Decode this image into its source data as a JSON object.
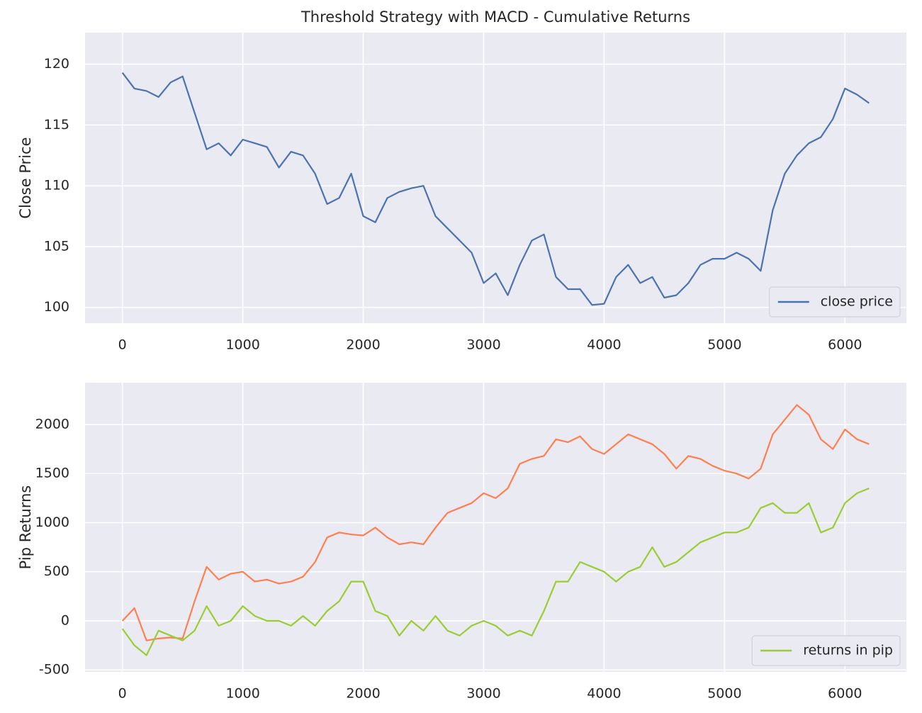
{
  "chart_data": [
    {
      "type": "line",
      "title": "Threshold Strategy with MACD - Cumulative Returns",
      "y_label": "Close Price",
      "x": [
        0,
        100,
        200,
        300,
        400,
        500,
        600,
        700,
        800,
        900,
        1000,
        1100,
        1200,
        1300,
        1400,
        1500,
        1600,
        1700,
        1800,
        1900,
        2000,
        2100,
        2200,
        2300,
        2400,
        2500,
        2600,
        2700,
        2800,
        2900,
        3000,
        3100,
        3200,
        3300,
        3400,
        3500,
        3600,
        3700,
        3800,
        3900,
        4000,
        4100,
        4200,
        4300,
        4400,
        4500,
        4600,
        4700,
        4800,
        4900,
        5000,
        5100,
        5200,
        5300,
        5400,
        5500,
        5600,
        5700,
        5800,
        5900,
        6000,
        6100,
        6200
      ],
      "series": [
        {
          "name": "close price",
          "color": "#4c72b0",
          "values": [
            119.3,
            118,
            117.8,
            117.3,
            118.5,
            119,
            116,
            113,
            113.5,
            112.5,
            113.8,
            113.5,
            113.2,
            111.5,
            112.8,
            112.5,
            111,
            108.5,
            109,
            111,
            107.5,
            107,
            109,
            109.5,
            109.8,
            110,
            107.5,
            106.5,
            105.5,
            104.5,
            102,
            102.8,
            101,
            103.5,
            105.5,
            106,
            102.5,
            101.5,
            101.5,
            100.2,
            100.3,
            102.5,
            103.5,
            102,
            102.5,
            100.8,
            101,
            102,
            103.5,
            104,
            104,
            104.5,
            104,
            103,
            108,
            111,
            112.5,
            113.5,
            114,
            115.5,
            118,
            117.5,
            116.8
          ]
        }
      ],
      "xlim": [
        -310,
        6510
      ],
      "xticks": [
        0,
        1000,
        2000,
        3000,
        4000,
        5000,
        6000
      ],
      "ylim": [
        98.7,
        122.6
      ],
      "yticks": [
        100,
        105,
        110,
        115,
        120
      ],
      "grid": true,
      "legend": "lower right"
    },
    {
      "type": "line",
      "y_label": "Pip Returns",
      "x": [
        0,
        100,
        200,
        300,
        400,
        500,
        600,
        700,
        800,
        900,
        1000,
        1100,
        1200,
        1300,
        1400,
        1500,
        1600,
        1700,
        1800,
        1900,
        2000,
        2100,
        2200,
        2300,
        2400,
        2500,
        2600,
        2700,
        2800,
        2900,
        3000,
        3100,
        3200,
        3300,
        3400,
        3500,
        3600,
        3700,
        3800,
        3900,
        4000,
        4100,
        4200,
        4300,
        4400,
        4500,
        4600,
        4700,
        4800,
        4900,
        5000,
        5100,
        5200,
        5300,
        5400,
        5500,
        5600,
        5700,
        5800,
        5900,
        6000,
        6100,
        6200
      ],
      "series": [
        {
          "color": "#ff7f50",
          "values": [
            0,
            130,
            -200,
            -180,
            -170,
            -180,
            200,
            550,
            420,
            480,
            500,
            400,
            420,
            380,
            400,
            450,
            600,
            850,
            900,
            880,
            870,
            950,
            850,
            780,
            800,
            780,
            950,
            1100,
            1150,
            1200,
            1300,
            1250,
            1350,
            1600,
            1650,
            1680,
            1850,
            1820,
            1880,
            1750,
            1700,
            1800,
            1900,
            1850,
            1800,
            1700,
            1550,
            1680,
            1650,
            1580,
            1530,
            1500,
            1450,
            1550,
            1900,
            2050,
            2200,
            2100,
            1850,
            1750,
            1950,
            1850,
            1800
          ]
        },
        {
          "name": "returns in pip",
          "color": "#9acd32",
          "values": [
            -80,
            -250,
            -350,
            -100,
            -150,
            -200,
            -100,
            150,
            -50,
            0,
            150,
            50,
            0,
            0,
            -50,
            50,
            -50,
            100,
            200,
            400,
            400,
            100,
            50,
            -150,
            0,
            -100,
            50,
            -100,
            -150,
            -50,
            0,
            -50,
            -150,
            -100,
            -150,
            100,
            400,
            400,
            600,
            550,
            500,
            400,
            500,
            550,
            750,
            550,
            600,
            700,
            800,
            850,
            900,
            900,
            950,
            1150,
            1200,
            1100,
            1100,
            1200,
            900,
            950,
            1200,
            1300,
            1350
          ]
        }
      ],
      "xlim": [
        -310,
        6510
      ],
      "xticks": [
        0,
        1000,
        2000,
        3000,
        4000,
        5000,
        6000
      ],
      "ylim": [
        -520,
        2426
      ],
      "yticks": [
        -500,
        0,
        500,
        1000,
        1500,
        2000
      ],
      "grid": true,
      "legend": "lower right"
    }
  ]
}
